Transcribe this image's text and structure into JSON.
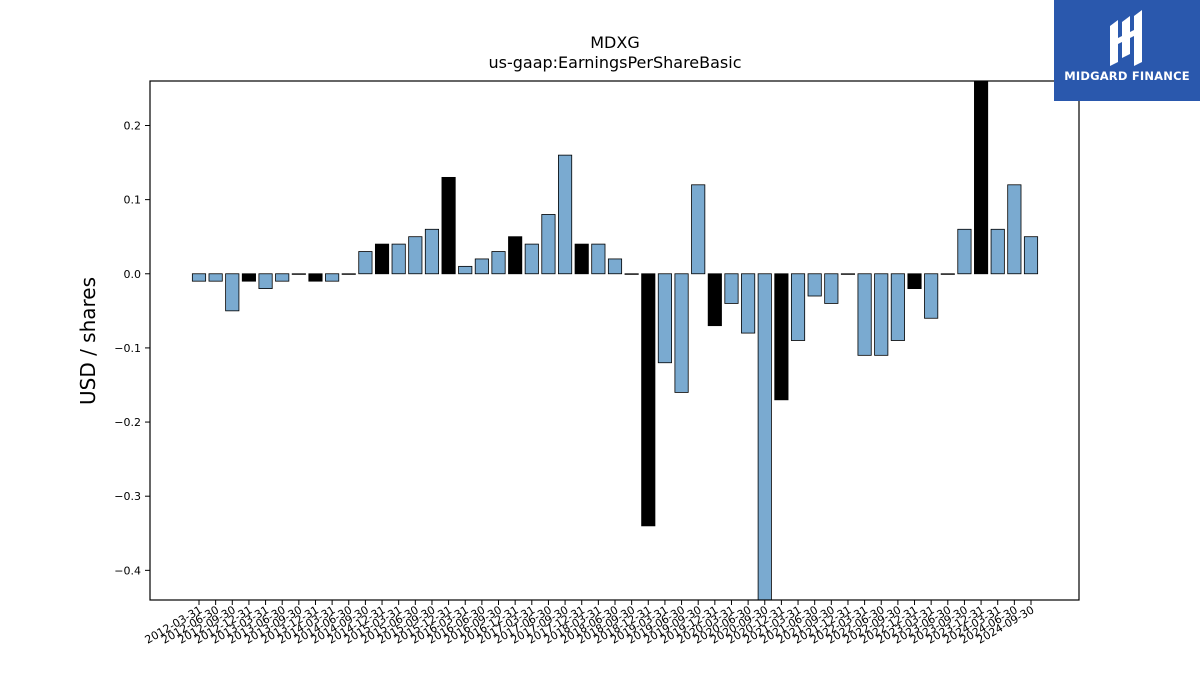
{
  "brand": {
    "name": "MIDGARD FINANCE",
    "mark_icon": "midgard-logo-icon",
    "color": "#2a58ad"
  },
  "chart_data": {
    "type": "bar",
    "title": "MDXG",
    "subtitle": "us-gaap:EarningsPerShareBasic",
    "ylabel": "USD / shares",
    "xlabel": "",
    "ylim": [
      -0.44,
      0.26
    ],
    "yticks": [
      0.2,
      0.1,
      0.0,
      -0.1,
      -0.2,
      -0.3,
      -0.4
    ],
    "ytick_labels": [
      "0.2",
      "0.1",
      "0.0",
      "−0.1",
      "−0.2",
      "−0.3",
      "−0.4"
    ],
    "grid": false,
    "colors": {
      "quarter": "#7aaad0",
      "annual": "#000000"
    },
    "categories": [
      "2012-03-31",
      "2012-06-30",
      "2012-09-30",
      "2012-12-31",
      "2013-03-31",
      "2013-06-30",
      "2013-09-30",
      "2013-12-31",
      "2014-03-31",
      "2014-06-30",
      "2014-09-30",
      "2014-12-31",
      "2015-03-31",
      "2015-06-30",
      "2015-09-30",
      "2015-12-31",
      "2016-03-31",
      "2016-06-30",
      "2016-09-30",
      "2016-12-31",
      "2017-03-31",
      "2017-06-30",
      "2017-09-30",
      "2017-12-31",
      "2018-03-31",
      "2018-06-30",
      "2018-09-30",
      "2018-12-31",
      "2019-03-31",
      "2019-06-30",
      "2019-09-30",
      "2019-12-31",
      "2020-03-31",
      "2020-06-30",
      "2020-09-30",
      "2020-12-31",
      "2021-03-31",
      "2021-06-30",
      "2021-09-30",
      "2021-12-31",
      "2022-03-31",
      "2022-06-30",
      "2022-09-30",
      "2022-12-31",
      "2023-03-31",
      "2023-06-30",
      "2023-09-30",
      "2023-12-31",
      "2024-03-31",
      "2024-06-30",
      "2024-09-30"
    ],
    "tick_labels": [
      "2012-03-31",
      "2012-06-30",
      "2012-09-30",
      "2012-12-31",
      "2013-03-31",
      "2013-06-30",
      "2013-09-30",
      "2013-12-31",
      "2014-03-31",
      "2014-06-30",
      "2014-09-30",
      "2014-12-31",
      "2015-03-31",
      "2015-06-30",
      "2015-09-30",
      "2015-12-31",
      "2016-03-31",
      "2016-06-30",
      "2016-09-30",
      "2016-12-31",
      "2017-03-31",
      "2017-06-30",
      "2017-09-30",
      "2017-12-31",
      "2018-03-31",
      "2018-06-30",
      "2018-09-30",
      "2018-12-31",
      "2019-03-31",
      "2019-06-30",
      "2019-09-30",
      "2019-12-31",
      "2020-03-31",
      "2020-06-30",
      "2020-09-30",
      "2020-12-31",
      "2021-03-31",
      "2021-06-30",
      "2021-09-30",
      "2021-12-31",
      "2022-03-31",
      "2022-06-30",
      "2022-09-30",
      "2022-12-31",
      "2023-03-31",
      "2023-06-30",
      "2023-09-30",
      "2023-12-31",
      "2024-03-31",
      "2024-06-30",
      "2024-09-30"
    ],
    "values": [
      -0.01,
      -0.01,
      -0.05,
      -0.01,
      -0.02,
      -0.01,
      0.0,
      -0.01,
      -0.01,
      0.0,
      0.03,
      0.04,
      0.04,
      0.05,
      0.06,
      0.13,
      0.01,
      0.02,
      0.03,
      0.05,
      0.04,
      0.08,
      0.16,
      0.04,
      0.04,
      0.02,
      0.0,
      -0.34,
      -0.12,
      -0.16,
      0.12,
      -0.07,
      -0.04,
      -0.08,
      -0.44,
      -0.17,
      -0.09,
      -0.03,
      -0.04,
      0.0,
      -0.11,
      -0.11,
      -0.09,
      -0.02,
      -0.06,
      0.0,
      0.06,
      0.26,
      0.06,
      0.12,
      0.05
    ],
    "annual": [
      false,
      false,
      false,
      true,
      false,
      false,
      false,
      true,
      false,
      false,
      false,
      true,
      false,
      false,
      false,
      true,
      false,
      false,
      false,
      true,
      false,
      false,
      false,
      true,
      false,
      false,
      false,
      true,
      false,
      false,
      false,
      true,
      false,
      false,
      false,
      true,
      false,
      false,
      false,
      true,
      false,
      false,
      false,
      true,
      false,
      false,
      false,
      true,
      false,
      false,
      false
    ]
  }
}
